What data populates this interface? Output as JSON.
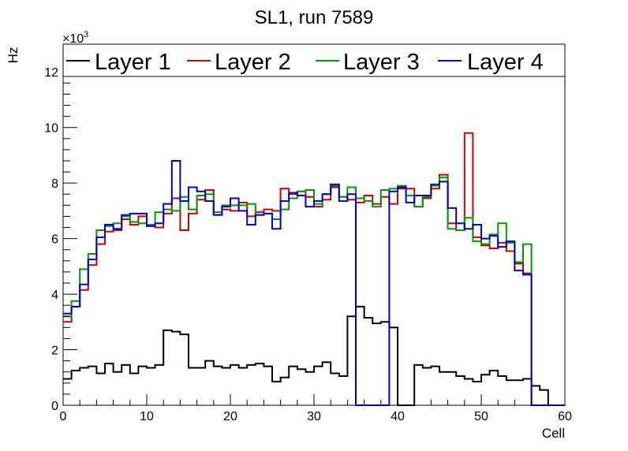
{
  "chart_data": {
    "type": "line",
    "title": "SL1, run 7589",
    "xlabel": "Cell",
    "ylabel": "Hz",
    "y_multiplier_label": "×10",
    "y_multiplier_exp": "3",
    "xlim": [
      0,
      60
    ],
    "ylim": [
      0,
      13
    ],
    "x_ticks": [
      0,
      10,
      20,
      30,
      40,
      50,
      60
    ],
    "y_ticks": [
      0,
      2,
      4,
      6,
      8,
      10,
      12
    ],
    "x_tick_labels": [
      "0",
      "10",
      "20",
      "30",
      "40",
      "50",
      "60"
    ],
    "y_tick_labels": [
      "0",
      "2",
      "4",
      "6",
      "8",
      "10",
      "12"
    ],
    "legend_position": "top",
    "bin_width": 1,
    "series": [
      {
        "name": "Layer 1",
        "color": "#000000",
        "values": [
          0.95,
          1.25,
          1.35,
          1.4,
          1.15,
          1.5,
          1.2,
          1.45,
          1.15,
          1.4,
          1.35,
          1.45,
          2.7,
          2.65,
          2.55,
          1.35,
          1.35,
          1.6,
          1.4,
          1.35,
          1.45,
          1.35,
          1.45,
          1.5,
          1.4,
          0.85,
          1.0,
          1.4,
          1.3,
          1.2,
          1.4,
          1.55,
          1.15,
          1.05,
          3.2,
          3.55,
          3.15,
          2.95,
          3.0,
          2.8,
          0.0,
          0.0,
          1.45,
          1.35,
          1.4,
          1.2,
          1.2,
          1.05,
          0.95,
          0.85,
          1.1,
          1.25,
          1.05,
          0.9,
          0.9,
          0.95,
          0.7,
          0.55,
          0.0,
          0.0
        ]
      },
      {
        "name": "Layer 2",
        "color": "#cc0000",
        "values": [
          3.0,
          3.55,
          4.15,
          5.05,
          5.8,
          6.25,
          6.3,
          6.7,
          6.5,
          6.8,
          6.45,
          6.4,
          6.9,
          7.45,
          6.3,
          6.9,
          7.4,
          7.75,
          6.85,
          7.05,
          7.0,
          7.3,
          6.8,
          6.95,
          7.05,
          7.0,
          7.8,
          7.6,
          7.7,
          7.5,
          7.15,
          7.4,
          7.85,
          7.5,
          7.4,
          7.3,
          7.55,
          7.25,
          7.5,
          7.25,
          7.8,
          7.8,
          7.15,
          7.45,
          7.8,
          8.3,
          6.55,
          6.3,
          9.8,
          6.05,
          5.75,
          5.65,
          5.85,
          5.55,
          5.1,
          4.75,
          0.0,
          0.0,
          0.0,
          0.0
        ]
      },
      {
        "name": "Layer 3",
        "color": "#009900",
        "values": [
          3.2,
          3.75,
          4.9,
          5.45,
          6.3,
          6.45,
          6.55,
          6.8,
          6.6,
          6.55,
          6.5,
          6.95,
          7.05,
          7.0,
          7.5,
          7.05,
          7.55,
          7.6,
          6.95,
          7.2,
          7.2,
          7.2,
          7.25,
          6.85,
          6.9,
          6.7,
          7.05,
          7.45,
          7.7,
          7.75,
          7.25,
          7.6,
          7.9,
          7.5,
          7.85,
          7.45,
          7.35,
          7.15,
          7.75,
          7.8,
          7.9,
          7.55,
          7.15,
          7.5,
          7.9,
          8.2,
          6.35,
          6.3,
          6.75,
          5.9,
          5.8,
          6.15,
          6.55,
          5.85,
          5.15,
          5.8,
          0.0,
          0.0,
          0.0,
          0.0
        ]
      },
      {
        "name": "Layer 4",
        "color": "#0000cc",
        "values": [
          3.3,
          3.55,
          4.35,
          5.25,
          6.05,
          6.5,
          6.35,
          6.85,
          6.9,
          6.9,
          6.45,
          6.55,
          7.25,
          8.8,
          7.35,
          7.85,
          7.7,
          7.35,
          6.85,
          7.15,
          7.45,
          7.0,
          6.5,
          6.85,
          6.9,
          6.35,
          7.35,
          7.65,
          7.55,
          7.15,
          7.35,
          7.6,
          7.95,
          7.35,
          7.6,
          0.0,
          0.0,
          0.0,
          0.0,
          7.7,
          7.85,
          7.3,
          7.55,
          7.55,
          7.95,
          8.05,
          7.1,
          6.55,
          6.35,
          6.5,
          6.0,
          6.1,
          5.7,
          5.9,
          4.85,
          4.7,
          0.0,
          0.0,
          0.0,
          0.0
        ]
      }
    ]
  }
}
